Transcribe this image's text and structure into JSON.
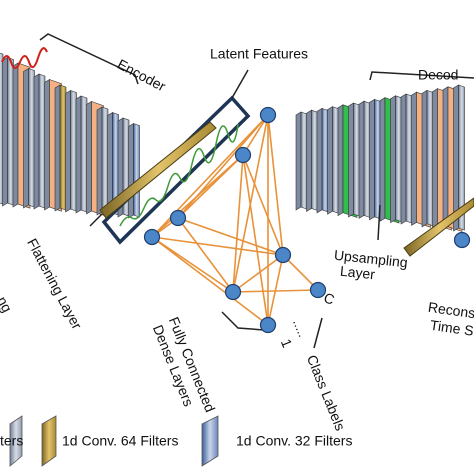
{
  "encoder": {
    "label": "Encoder"
  },
  "latent": {
    "label": "Latent Features"
  },
  "decoder": {
    "label": "Decod"
  },
  "flattening": {
    "label": "Flattening Layer"
  },
  "dense": {
    "label_line1": "Fully Connected",
    "label_line2": "Dense Layers",
    "first_class": "1",
    "last_class": "C",
    "dots": "....."
  },
  "class_labels": {
    "label": "Class Labels"
  },
  "upsampling": {
    "label_line1": "Upsampling",
    "label_line2": "Layer"
  },
  "reconstruction": {
    "label_line1": "Recons",
    "label_line2": "Time S"
  },
  "pooling": {
    "label": "ng"
  },
  "legend": {
    "items": [
      "ters",
      "1d Conv. 64 Filters",
      "1d Conv. 32 Filters"
    ]
  }
}
